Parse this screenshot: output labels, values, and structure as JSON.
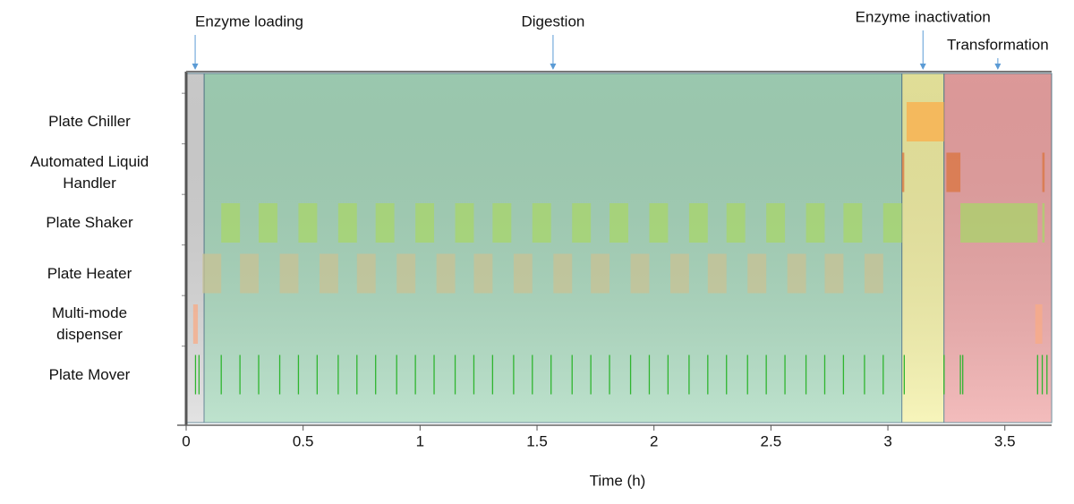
{
  "chart_data": {
    "type": "gantt",
    "x_label": "Time (h)",
    "xlim": [
      0,
      3.7
    ],
    "xticks": [
      0,
      0.5,
      1,
      1.5,
      2,
      2.5,
      3,
      3.5
    ],
    "phases": [
      {
        "name": "Enzyme loading",
        "start": 0,
        "end": 0.077,
        "color": "#d9d9d9"
      },
      {
        "name": "Digestion",
        "start": 0.077,
        "end": 3.06,
        "color": "#a8d9bd"
      },
      {
        "name": "Enzyme inactivation",
        "start": 3.06,
        "end": 3.24,
        "color": "#f4f1a4"
      },
      {
        "name": "Transformation",
        "start": 3.24,
        "end": 3.7,
        "color": "#efa6a6"
      }
    ],
    "tasks": [
      {
        "name": "Plate Chiller",
        "color": "#fbae4a",
        "bars": [
          [
            3.08,
            3.24
          ]
        ]
      },
      {
        "name": "Automated Liquid Handler",
        "color": "#d9743f",
        "bars": [
          [
            3.06,
            3.07
          ],
          [
            3.25,
            3.31
          ],
          [
            3.66,
            3.67
          ]
        ]
      },
      {
        "name": "Plate Shaker",
        "color": "#a8d66a",
        "bars": [
          [
            0.15,
            0.23
          ],
          [
            0.31,
            0.39
          ],
          [
            0.48,
            0.56
          ],
          [
            0.65,
            0.73
          ],
          [
            0.81,
            0.89
          ],
          [
            0.98,
            1.06
          ],
          [
            1.15,
            1.23
          ],
          [
            1.31,
            1.39
          ],
          [
            1.48,
            1.56
          ],
          [
            1.65,
            1.73
          ],
          [
            1.81,
            1.89
          ],
          [
            1.98,
            2.06
          ],
          [
            2.15,
            2.23
          ],
          [
            2.31,
            2.39
          ],
          [
            2.48,
            2.56
          ],
          [
            2.65,
            2.73
          ],
          [
            2.81,
            2.89
          ],
          [
            2.98,
            3.06
          ],
          [
            3.31,
            3.64
          ],
          [
            3.66,
            3.67
          ]
        ]
      },
      {
        "name": "Plate Heater",
        "color": "#c8c294",
        "bars": [
          [
            0.07,
            0.15
          ],
          [
            0.23,
            0.31
          ],
          [
            0.4,
            0.48
          ],
          [
            0.57,
            0.65
          ],
          [
            0.73,
            0.81
          ],
          [
            0.9,
            0.98
          ],
          [
            1.07,
            1.15
          ],
          [
            1.23,
            1.31
          ],
          [
            1.4,
            1.48
          ],
          [
            1.57,
            1.65
          ],
          [
            1.73,
            1.81
          ],
          [
            1.9,
            1.98
          ],
          [
            2.07,
            2.15
          ],
          [
            2.23,
            2.31
          ],
          [
            2.4,
            2.48
          ],
          [
            2.57,
            2.65
          ],
          [
            2.73,
            2.81
          ],
          [
            2.9,
            2.98
          ]
        ]
      },
      {
        "name": "Multi-mode dispenser",
        "color": "#f8ab85",
        "bars": [
          [
            0.03,
            0.05
          ],
          [
            3.63,
            3.66
          ]
        ]
      },
      {
        "name": "Plate Mover",
        "color": "#2fb52f",
        "times": [
          0.04,
          0.055,
          0.15,
          0.23,
          0.31,
          0.4,
          0.48,
          0.56,
          0.65,
          0.73,
          0.81,
          0.9,
          0.98,
          1.06,
          1.15,
          1.23,
          1.31,
          1.4,
          1.48,
          1.56,
          1.65,
          1.73,
          1.81,
          1.9,
          1.98,
          2.06,
          2.15,
          2.23,
          2.31,
          2.4,
          2.48,
          2.56,
          2.65,
          2.73,
          2.81,
          2.9,
          2.98,
          3.07,
          3.24,
          3.31,
          3.32,
          3.64,
          3.66,
          3.68
        ]
      }
    ]
  }
}
